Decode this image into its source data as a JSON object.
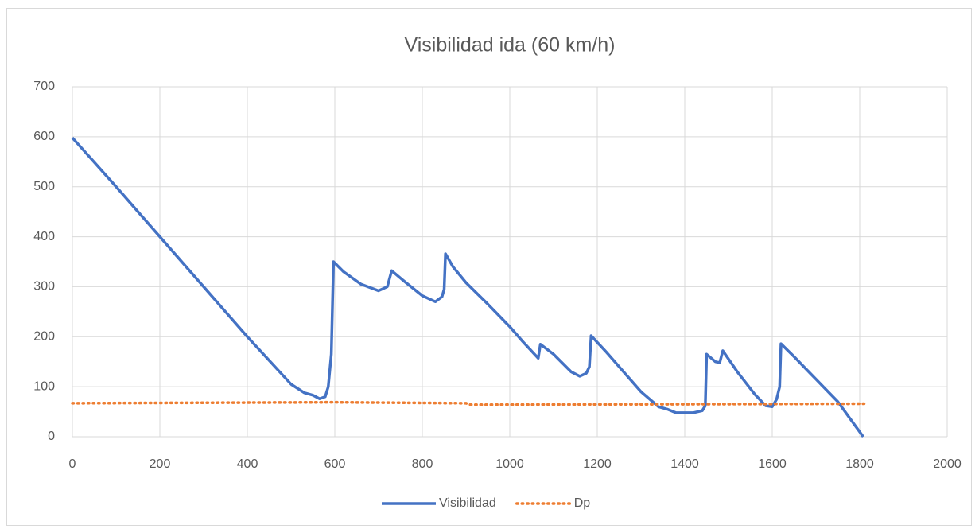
{
  "chart_data": {
    "type": "line",
    "title": "Visibilidad  ida (60 km/h)",
    "xlim": [
      0,
      2000
    ],
    "xticks": [
      0,
      200,
      400,
      600,
      800,
      1000,
      1200,
      1400,
      1600,
      1800,
      2000
    ],
    "ylim": [
      0,
      700
    ],
    "yticks": [
      0,
      100,
      200,
      300,
      400,
      500,
      600,
      700
    ],
    "grid": true,
    "legend": "bottom",
    "series": [
      {
        "name": "Visibilidad",
        "color": "#4472c4",
        "style": "solid",
        "x": [
          0,
          100,
          200,
          300,
          400,
          500,
          530,
          550,
          565,
          578,
          585,
          592,
          597,
          620,
          660,
          700,
          720,
          730,
          760,
          800,
          830,
          845,
          850,
          853,
          870,
          900,
          950,
          1000,
          1030,
          1065,
          1070,
          1100,
          1140,
          1160,
          1175,
          1182,
          1186,
          1220,
          1260,
          1300,
          1340,
          1360,
          1380,
          1420,
          1440,
          1447,
          1450,
          1470,
          1480,
          1487,
          1520,
          1560,
          1585,
          1600,
          1610,
          1617,
          1620,
          1650,
          1700,
          1750,
          1808
        ],
        "values": [
          598,
          500,
          400,
          300,
          200,
          105,
          88,
          83,
          76,
          80,
          100,
          165,
          350,
          330,
          305,
          292,
          300,
          332,
          310,
          282,
          270,
          280,
          295,
          366,
          340,
          308,
          265,
          220,
          190,
          157,
          185,
          165,
          130,
          121,
          127,
          140,
          202,
          170,
          130,
          90,
          60,
          55,
          48,
          48,
          52,
          62,
          165,
          150,
          148,
          172,
          130,
          85,
          62,
          60,
          75,
          100,
          186,
          160,
          115,
          70,
          0
        ]
      },
      {
        "name": "Dp",
        "color": "#ed7d31",
        "style": "dotted",
        "x": [
          0,
          600,
          900,
          910,
          1810
        ],
        "values": [
          67,
          69,
          67,
          64,
          66
        ]
      }
    ]
  }
}
